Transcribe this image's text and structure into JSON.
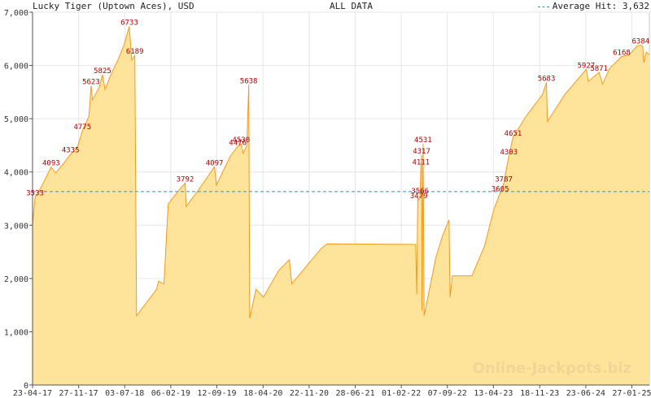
{
  "header": {
    "title": "Lucky Tiger (Uptown Aces), USD",
    "subtitle": "ALL DATA",
    "average_label": "Average Hit: 3,632"
  },
  "watermark": "Online-Jackpots.biz",
  "colors": {
    "fill": "#fde49a",
    "line": "#f39a1e",
    "label": "#aa0000",
    "average": "#3a8fb7",
    "grid": "#e6e6e6"
  },
  "chart_data": {
    "type": "area",
    "title": "Lucky Tiger (Uptown Aces), USD",
    "subtitle": "ALL DATA",
    "ylim": [
      0,
      7000
    ],
    "yticks": [
      0,
      1000,
      2000,
      3000,
      4000,
      5000,
      6000,
      7000
    ],
    "ytick_labels": [
      "0",
      "1,000",
      "2,000",
      "3,000",
      "4,000",
      "5,000",
      "6,000",
      "7,000"
    ],
    "xlim": [
      "2017-04-23",
      "2025-04-20"
    ],
    "xticks": [
      "2017-04-23",
      "2017-11-27",
      "2018-07-03",
      "2019-02-06",
      "2019-09-12",
      "2020-04-18",
      "2020-11-22",
      "2021-06-28",
      "2022-02-01",
      "2022-09-07",
      "2023-04-13",
      "2023-11-18",
      "2024-06-23",
      "2025-01-27"
    ],
    "xtick_labels": [
      "23-04-17",
      "27-11-17",
      "03-07-18",
      "06-02-19",
      "12-09-19",
      "18-04-20",
      "22-11-20",
      "28-06-21",
      "01-02-22",
      "07-09-22",
      "13-04-23",
      "18-11-23",
      "23-06-24",
      "27-01-25"
    ],
    "grid": true,
    "average": 3632,
    "series": [
      {
        "points": [
          [
            "2017-04-23",
            3000
          ],
          [
            "2017-05-05",
            3533
          ],
          [
            "2017-05-25",
            3650
          ],
          [
            "2017-06-20",
            3850
          ],
          [
            "2017-07-20",
            4093
          ],
          [
            "2017-08-10",
            3980
          ],
          [
            "2017-09-15",
            4150
          ],
          [
            "2017-10-20",
            4335
          ],
          [
            "2017-11-20",
            4450
          ],
          [
            "2017-12-15",
            4775
          ],
          [
            "2018-01-15",
            5050
          ],
          [
            "2018-01-25",
            5623
          ],
          [
            "2018-02-01",
            5350
          ],
          [
            "2018-03-05",
            5600
          ],
          [
            "2018-03-20",
            5825
          ],
          [
            "2018-04-01",
            5550
          ],
          [
            "2018-05-01",
            5850
          ],
          [
            "2018-06-01",
            6100
          ],
          [
            "2018-07-01",
            6400
          ],
          [
            "2018-07-25",
            6733
          ],
          [
            "2018-08-05",
            6100
          ],
          [
            "2018-08-20",
            6189
          ],
          [
            "2018-08-28",
            1300
          ],
          [
            "2018-10-15",
            1550
          ],
          [
            "2018-12-01",
            1800
          ],
          [
            "2018-12-10",
            1950
          ],
          [
            "2019-01-05",
            1900
          ],
          [
            "2019-01-25",
            3400
          ],
          [
            "2019-03-15",
            3650
          ],
          [
            "2019-04-15",
            3792
          ],
          [
            "2019-04-20",
            3350
          ],
          [
            "2019-06-15",
            3650
          ],
          [
            "2019-08-15",
            4000
          ],
          [
            "2019-09-01",
            4097
          ],
          [
            "2019-09-10",
            3750
          ],
          [
            "2019-11-15",
            4300
          ],
          [
            "2019-12-20",
            4476
          ],
          [
            "2020-01-05",
            4530
          ],
          [
            "2020-01-15",
            4350
          ],
          [
            "2020-02-01",
            4500
          ],
          [
            "2020-02-10",
            5638
          ],
          [
            "2020-02-15",
            1250
          ],
          [
            "2020-03-15",
            1800
          ],
          [
            "2020-04-20",
            1650
          ],
          [
            "2020-07-01",
            2150
          ],
          [
            "2020-08-20",
            2350
          ],
          [
            "2020-09-01",
            1900
          ],
          [
            "2021-01-15",
            2550
          ],
          [
            "2021-02-15",
            2650
          ],
          [
            "2022-04-10",
            2640
          ],
          [
            "2022-04-15",
            1700
          ],
          [
            "2022-04-20",
            3500
          ],
          [
            "2022-04-25",
            3479
          ],
          [
            "2022-05-01",
            3566
          ],
          [
            "2022-05-05",
            4111
          ],
          [
            "2022-05-08",
            4317
          ],
          [
            "2022-05-10",
            1400
          ],
          [
            "2022-05-15",
            4531
          ],
          [
            "2022-05-20",
            1300
          ],
          [
            "2022-07-15",
            2400
          ],
          [
            "2022-08-15",
            2800
          ],
          [
            "2022-09-15",
            3100
          ],
          [
            "2022-09-20",
            1650
          ],
          [
            "2022-10-01",
            2050
          ],
          [
            "2023-01-01",
            2050
          ],
          [
            "2023-03-01",
            2600
          ],
          [
            "2023-04-15",
            3300
          ],
          [
            "2023-05-15",
            3605
          ],
          [
            "2023-06-01",
            3787
          ],
          [
            "2023-06-25",
            4303
          ],
          [
            "2023-07-15",
            4651
          ],
          [
            "2023-09-15",
            5050
          ],
          [
            "2023-12-01",
            5450
          ],
          [
            "2023-12-20",
            5683
          ],
          [
            "2023-12-25",
            4950
          ],
          [
            "2024-03-15",
            5450
          ],
          [
            "2024-06-25",
            5927
          ],
          [
            "2024-07-05",
            5700
          ],
          [
            "2024-08-25",
            5871
          ],
          [
            "2024-09-10",
            5650
          ],
          [
            "2024-10-15",
            5950
          ],
          [
            "2024-12-10",
            6168
          ],
          [
            "2025-01-15",
            6200
          ],
          [
            "2025-02-20",
            6364
          ],
          [
            "2025-03-10",
            6384
          ],
          [
            "2025-03-20",
            6350
          ],
          [
            "2025-03-25",
            6050
          ],
          [
            "2025-04-05",
            6250
          ],
          [
            "2025-04-20",
            6200
          ]
        ]
      }
    ],
    "annotations": [
      {
        "x": "2017-05-05",
        "y": 3533,
        "text": "3533"
      },
      {
        "x": "2017-07-20",
        "y": 4093,
        "text": "4093"
      },
      {
        "x": "2017-10-20",
        "y": 4335,
        "text": "4335"
      },
      {
        "x": "2017-12-15",
        "y": 4775,
        "text": "4775"
      },
      {
        "x": "2018-01-25",
        "y": 5623,
        "text": "5623"
      },
      {
        "x": "2018-03-20",
        "y": 5825,
        "text": "5825"
      },
      {
        "x": "2018-07-25",
        "y": 6733,
        "text": "6733"
      },
      {
        "x": "2018-08-20",
        "y": 6189,
        "text": "6189"
      },
      {
        "x": "2019-04-15",
        "y": 3792,
        "text": "3792"
      },
      {
        "x": "2019-09-01",
        "y": 4097,
        "text": "4097"
      },
      {
        "x": "2019-12-20",
        "y": 4476,
        "text": "4476"
      },
      {
        "x": "2020-01-05",
        "y": 4530,
        "text": "4530"
      },
      {
        "x": "2020-02-10",
        "y": 5638,
        "text": "5638"
      },
      {
        "x": "2022-05-01",
        "y": 3566,
        "text": "3566"
      },
      {
        "x": "2022-04-25",
        "y": 3479,
        "text": "3479"
      },
      {
        "x": "2022-05-05",
        "y": 4111,
        "text": "4111"
      },
      {
        "x": "2022-05-08",
        "y": 4317,
        "text": "4317"
      },
      {
        "x": "2022-05-15",
        "y": 4531,
        "text": "4531"
      },
      {
        "x": "2023-05-15",
        "y": 3605,
        "text": "3605"
      },
      {
        "x": "2023-06-01",
        "y": 3787,
        "text": "3787"
      },
      {
        "x": "2023-06-25",
        "y": 4303,
        "text": "4303"
      },
      {
        "x": "2023-07-15",
        "y": 4651,
        "text": "4651"
      },
      {
        "x": "2023-12-20",
        "y": 5683,
        "text": "5683"
      },
      {
        "x": "2024-06-25",
        "y": 5927,
        "text": "5927"
      },
      {
        "x": "2024-08-25",
        "y": 5871,
        "text": "5871"
      },
      {
        "x": "2024-12-10",
        "y": 6168,
        "text": "6168"
      },
      {
        "x": "2025-03-10",
        "y": 6384,
        "text": "6384"
      }
    ]
  }
}
